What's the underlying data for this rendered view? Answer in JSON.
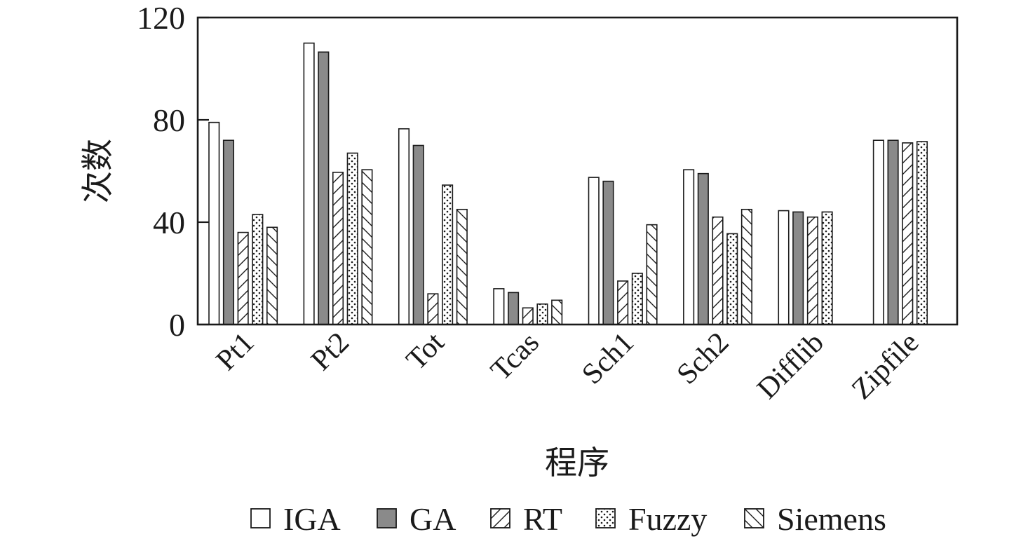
{
  "chart_data": {
    "type": "bar",
    "xlabel": "程序",
    "ylabel": "次数",
    "ylim": [
      0,
      120
    ],
    "yticks": [
      0,
      40,
      80,
      120
    ],
    "categories": [
      "Pt1",
      "Pt2",
      "Tot",
      "Tcas",
      "Sch1",
      "Sch2",
      "Difflib",
      "Zipfile"
    ],
    "series": [
      {
        "name": "IGA",
        "pattern": "white",
        "values": [
          79,
          110,
          76.5,
          14,
          57.5,
          60.5,
          44.5,
          72
        ]
      },
      {
        "name": "GA",
        "pattern": "gray",
        "values": [
          72,
          106.5,
          70,
          12.5,
          56,
          59,
          44,
          72
        ]
      },
      {
        "name": "RT",
        "pattern": "forward-hatch",
        "values": [
          36,
          59.5,
          12,
          6.5,
          17,
          42,
          42,
          71
        ]
      },
      {
        "name": "Fuzzy",
        "pattern": "dots",
        "values": [
          43,
          67,
          54.5,
          8,
          20,
          35.5,
          44,
          71.5
        ]
      },
      {
        "name": "Siemens",
        "pattern": "back-hatch",
        "values": [
          38,
          60.5,
          45,
          9.5,
          39,
          45,
          null,
          null
        ]
      }
    ],
    "legend_position": "bottom",
    "grid": false,
    "colors": {
      "gray": "#8a8a8a",
      "stroke": "#1a1a1a",
      "fill": "#ffffff"
    }
  }
}
